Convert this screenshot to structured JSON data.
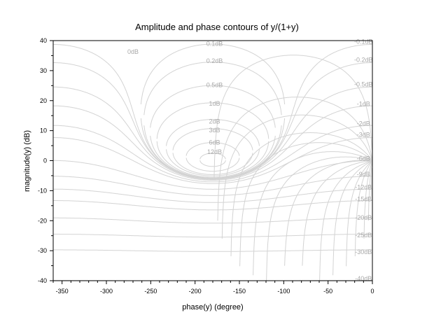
{
  "chart_data": {
    "type": "line",
    "title": "Amplitude and phase contours of y/(1+y)",
    "xlabel": "phase(y) (degree)",
    "ylabel": "magnitude(y) (dB)",
    "xlim": [
      -360,
      0
    ],
    "ylim": [
      -40,
      40
    ],
    "x_ticks": [
      -350,
      -300,
      -250,
      -200,
      -150,
      -100,
      -50,
      0
    ],
    "y_ticks": [
      -40,
      -30,
      -20,
      -10,
      0,
      10,
      20,
      30,
      40
    ],
    "grid": false,
    "colors": {
      "contour": "#d3d3d3",
      "contour_label": "#a9a9a9",
      "axis": "#000000"
    },
    "contour_labels": [
      {
        "text": "-0.1dB",
        "x": -10,
        "y": 39.6
      },
      {
        "text": "-0.2dB",
        "x": -10,
        "y": 33.6
      },
      {
        "text": "-0.5dB",
        "x": -10,
        "y": 25.4
      },
      {
        "text": "-1dB",
        "x": -10,
        "y": 18.9
      },
      {
        "text": "-2dB",
        "x": -10,
        "y": 12.4
      },
      {
        "text": "-3dB",
        "x": -10,
        "y": 8.6
      },
      {
        "text": "-6dB",
        "x": -10,
        "y": 0.7
      },
      {
        "text": "-9dB",
        "x": -10,
        "y": -4.5
      },
      {
        "text": "-12dB",
        "x": -10,
        "y": -8.9
      },
      {
        "text": "-15dB",
        "x": -10,
        "y": -12.8
      },
      {
        "text": "-20dB",
        "x": -10,
        "y": -19.0
      },
      {
        "text": "-25dB",
        "x": -10,
        "y": -24.8
      },
      {
        "text": "-30dB",
        "x": -10,
        "y": -30.4
      },
      {
        "text": "-40dB",
        "x": -10,
        "y": -39.6
      },
      {
        "text": "0dB",
        "x": -270,
        "y": 36.3
      },
      {
        "text": "0.1dB",
        "x": -178,
        "y": 38.9
      },
      {
        "text": "0.2dB",
        "x": -178,
        "y": 33.2
      },
      {
        "text": "0.5dB",
        "x": -178,
        "y": 25.2
      },
      {
        "text": "1dB",
        "x": -178,
        "y": 19.0
      },
      {
        "text": "2dB",
        "x": -178,
        "y": 13.1
      },
      {
        "text": "3dB",
        "x": -178,
        "y": 10.2
      },
      {
        "text": "6dB",
        "x": -178,
        "y": 6.1
      },
      {
        "text": "12dB",
        "x": -178,
        "y": 2.9
      }
    ]
  }
}
